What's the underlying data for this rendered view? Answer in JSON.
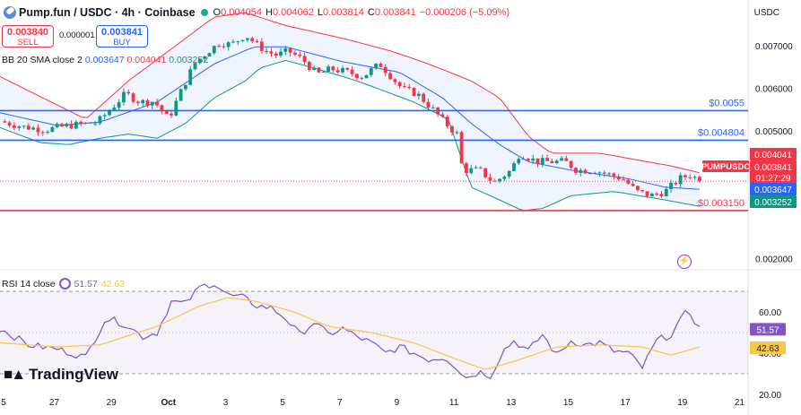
{
  "header": {
    "symbol": "Pump.fun / USDC · 4h · Coinbase",
    "ohlc": [
      {
        "k": "O",
        "v": "0.004054"
      },
      {
        "k": "H",
        "v": "0.004062"
      },
      {
        "k": "L",
        "v": "0.003814"
      },
      {
        "k": "C",
        "v": "0.003841"
      }
    ],
    "change": "−0.000206 (−5.09%)",
    "currency": "USDC"
  },
  "trade": {
    "sell_price": "0.003840",
    "sell_label": "SELL",
    "buy_price": "0.003841",
    "buy_label": "BUY",
    "spread": "0.000001"
  },
  "bb_legend": {
    "label": "BB 20 SMA close 2",
    "basis": "0.003647",
    "upper": "0.004041",
    "lower": "0.003252"
  },
  "rsi_legend": {
    "label": "RSI 14 close",
    "rsi": "51.57",
    "ma": "42.63"
  },
  "brand": "TradingView",
  "colors": {
    "up": "#089981",
    "down": "#f23645",
    "bb_basis": "#2962ff",
    "bb_upper": "#f23645",
    "bb_lower": "#089981",
    "rsi": "#7e57c2",
    "rsi_ma": "#f5c84c"
  },
  "chart_data": {
    "type": "candlestick",
    "timeframe": "4h",
    "price_axis": {
      "ylim": [
        0.00178,
        0.0081
      ],
      "ticks": [
        "0.007000",
        "0.006000",
        "0.005000",
        "0.002000"
      ],
      "scale": "linear"
    },
    "time_axis": {
      "ticks": [
        "5",
        "27",
        "29",
        "Oct",
        "3",
        "5",
        "7",
        "9",
        "11",
        "13",
        "15",
        "17",
        "19",
        "21"
      ],
      "tick_days": [
        -0.1,
        1.9,
        3.9,
        5.9,
        7.9,
        9.9,
        11.9,
        13.9,
        15.9,
        17.9,
        19.9,
        21.9,
        23.9,
        25.9
      ]
    },
    "horizontal_lines": [
      {
        "price": 0.0055,
        "label": "$0.0055",
        "color": "#2962ff"
      },
      {
        "price": 0.004804,
        "label": "$0.004804",
        "color": "#2962ff"
      },
      {
        "price": 0.00315,
        "label": "$0.003150",
        "color": "#f23645"
      }
    ],
    "price_labels": [
      {
        "text": "0.004041",
        "kind": "bb-upper",
        "color": "#f23645"
      },
      {
        "text": "PUMPUSDC",
        "kind": "symbol",
        "color": "#f23645"
      },
      {
        "text": "0.003841",
        "kind": "last",
        "color": "#f23645"
      },
      {
        "text": "01:27:29",
        "kind": "countdown",
        "color": "#f23645"
      },
      {
        "text": "0.003647",
        "kind": "bb-basis",
        "color": "#2962ff"
      },
      {
        "text": "0.003252",
        "kind": "bb-lower",
        "color": "#089981"
      }
    ],
    "last_price": 0.003841,
    "close_path": [
      [
        0.0,
        0.00525
      ],
      [
        0.8,
        0.00512
      ],
      [
        1.6,
        0.00505
      ],
      [
        2.4,
        0.00515
      ],
      [
        3.4,
        0.00522
      ],
      [
        3.9,
        0.00555
      ],
      [
        4.4,
        0.0059
      ],
      [
        4.9,
        0.0057
      ],
      [
        5.4,
        0.00572
      ],
      [
        5.9,
        0.0053
      ],
      [
        6.3,
        0.0059
      ],
      [
        6.8,
        0.0066
      ],
      [
        7.3,
        0.0069
      ],
      [
        7.7,
        0.0071
      ],
      [
        8.1,
        0.00705
      ],
      [
        8.6,
        0.00728
      ],
      [
        8.9,
        0.0071
      ],
      [
        9.3,
        0.0069
      ],
      [
        9.7,
        0.0068
      ],
      [
        10.1,
        0.0069
      ],
      [
        10.6,
        0.0067
      ],
      [
        11.1,
        0.00635
      ],
      [
        11.6,
        0.00648
      ],
      [
        12.2,
        0.0064
      ],
      [
        12.7,
        0.0063
      ],
      [
        13.3,
        0.0066
      ],
      [
        13.7,
        0.0063
      ],
      [
        14.1,
        0.006
      ],
      [
        14.6,
        0.0059
      ],
      [
        15.2,
        0.0055
      ],
      [
        15.6,
        0.0052
      ],
      [
        16.0,
        0.00495
      ],
      [
        16.2,
        0.0041
      ],
      [
        16.8,
        0.0041
      ],
      [
        17.3,
        0.0038
      ],
      [
        17.9,
        0.0041
      ],
      [
        18.2,
        0.0045
      ],
      [
        18.8,
        0.0043
      ],
      [
        19.3,
        0.0043
      ],
      [
        19.8,
        0.0043
      ],
      [
        20.2,
        0.0041
      ],
      [
        20.8,
        0.0041
      ],
      [
        21.3,
        0.004
      ],
      [
        21.8,
        0.0039
      ],
      [
        22.3,
        0.0036
      ],
      [
        22.8,
        0.0035
      ],
      [
        23.3,
        0.0036
      ],
      [
        23.8,
        0.0039
      ],
      [
        24.2,
        0.004
      ],
      [
        24.5,
        0.00384
      ]
    ],
    "bb_upper_path": [
      [
        0.0,
        0.0063
      ],
      [
        1.5,
        0.0058
      ],
      [
        3.0,
        0.0053
      ],
      [
        4.5,
        0.0062
      ],
      [
        6.3,
        0.0071
      ],
      [
        7.5,
        0.0077
      ],
      [
        8.6,
        0.0078
      ],
      [
        10.0,
        0.0075
      ],
      [
        12.0,
        0.0072
      ],
      [
        13.7,
        0.0069
      ],
      [
        15.0,
        0.0066
      ],
      [
        16.5,
        0.0062
      ],
      [
        17.5,
        0.0058
      ],
      [
        18.5,
        0.0049
      ],
      [
        19.3,
        0.0045
      ],
      [
        21.0,
        0.0045
      ],
      [
        23.5,
        0.0042
      ],
      [
        24.5,
        0.00404
      ]
    ],
    "bb_basis_path": [
      [
        0.0,
        0.00545
      ],
      [
        2.0,
        0.00515
      ],
      [
        3.5,
        0.00523
      ],
      [
        5.5,
        0.0057
      ],
      [
        7.5,
        0.0066
      ],
      [
        8.9,
        0.007
      ],
      [
        10.0,
        0.007
      ],
      [
        12.0,
        0.00665
      ],
      [
        14.0,
        0.0064
      ],
      [
        15.5,
        0.0058
      ],
      [
        16.5,
        0.0052
      ],
      [
        17.5,
        0.0047
      ],
      [
        18.5,
        0.0043
      ],
      [
        20.0,
        0.0041
      ],
      [
        22.0,
        0.0039
      ],
      [
        23.3,
        0.0037
      ],
      [
        24.5,
        0.00365
      ]
    ],
    "bb_lower_path": [
      [
        0.0,
        0.0051
      ],
      [
        1.4,
        0.00475
      ],
      [
        2.4,
        0.0047
      ],
      [
        3.5,
        0.00485
      ],
      [
        4.5,
        0.00495
      ],
      [
        5.5,
        0.00485
      ],
      [
        6.5,
        0.0052
      ],
      [
        7.5,
        0.0058
      ],
      [
        8.6,
        0.0062
      ],
      [
        9.1,
        0.0065
      ],
      [
        10.0,
        0.00668
      ],
      [
        11.0,
        0.0065
      ],
      [
        12.5,
        0.0062
      ],
      [
        14.5,
        0.0057
      ],
      [
        15.7,
        0.0053
      ],
      [
        16.5,
        0.0037
      ],
      [
        17.5,
        0.0034
      ],
      [
        18.3,
        0.00315
      ],
      [
        19.0,
        0.0032
      ],
      [
        20.0,
        0.0035
      ],
      [
        21.5,
        0.0036
      ],
      [
        23.3,
        0.0034
      ],
      [
        24.5,
        0.00325
      ]
    ],
    "rsi": {
      "ylim": [
        20,
        80
      ],
      "ticks": [
        "60.00",
        "40.00",
        "20.00"
      ],
      "bands": [
        70,
        30
      ],
      "labels": [
        "51.57",
        "42.63"
      ],
      "rsi_path": [
        [
          0.0,
          52
        ],
        [
          1.0,
          44
        ],
        [
          2.0,
          42
        ],
        [
          3.0,
          38
        ],
        [
          3.7,
          57
        ],
        [
          4.4,
          54
        ],
        [
          5.0,
          48
        ],
        [
          5.5,
          50
        ],
        [
          6.0,
          65
        ],
        [
          6.5,
          64
        ],
        [
          7.0,
          72
        ],
        [
          7.5,
          74
        ],
        [
          8.0,
          68
        ],
        [
          8.5,
          67
        ],
        [
          9.0,
          63
        ],
        [
          9.5,
          62
        ],
        [
          10.0,
          57
        ],
        [
          10.5,
          49
        ],
        [
          11.0,
          55
        ],
        [
          11.5,
          49
        ],
        [
          12.0,
          52
        ],
        [
          12.5,
          48
        ],
        [
          13.0,
          45
        ],
        [
          13.5,
          40
        ],
        [
          14.0,
          43
        ],
        [
          14.5,
          40
        ],
        [
          15.0,
          37
        ],
        [
          15.6,
          38
        ],
        [
          16.0,
          33
        ],
        [
          16.3,
          28
        ],
        [
          16.8,
          31
        ],
        [
          17.2,
          29
        ],
        [
          17.6,
          41
        ],
        [
          18.0,
          46
        ],
        [
          18.5,
          41
        ],
        [
          19.0,
          49
        ],
        [
          19.5,
          39
        ],
        [
          20.0,
          46
        ],
        [
          20.5,
          44
        ],
        [
          21.0,
          45
        ],
        [
          21.5,
          41
        ],
        [
          22.0,
          40
        ],
        [
          22.5,
          33
        ],
        [
          23.0,
          46
        ],
        [
          23.5,
          49
        ],
        [
          24.1,
          61
        ],
        [
          24.5,
          52
        ]
      ],
      "ma_path": [
        [
          0.0,
          45
        ],
        [
          2.0,
          43
        ],
        [
          3.5,
          44
        ],
        [
          5.5,
          53
        ],
        [
          7.0,
          63
        ],
        [
          8.0,
          67
        ],
        [
          9.0,
          65
        ],
        [
          10.3,
          60
        ],
        [
          11.5,
          53
        ],
        [
          13.0,
          50
        ],
        [
          14.5,
          45
        ],
        [
          16.0,
          37
        ],
        [
          17.0,
          32
        ],
        [
          18.0,
          36
        ],
        [
          19.5,
          43
        ],
        [
          21.0,
          44
        ],
        [
          22.5,
          43
        ],
        [
          23.5,
          39
        ],
        [
          24.0,
          41
        ],
        [
          24.5,
          43
        ]
      ]
    }
  }
}
